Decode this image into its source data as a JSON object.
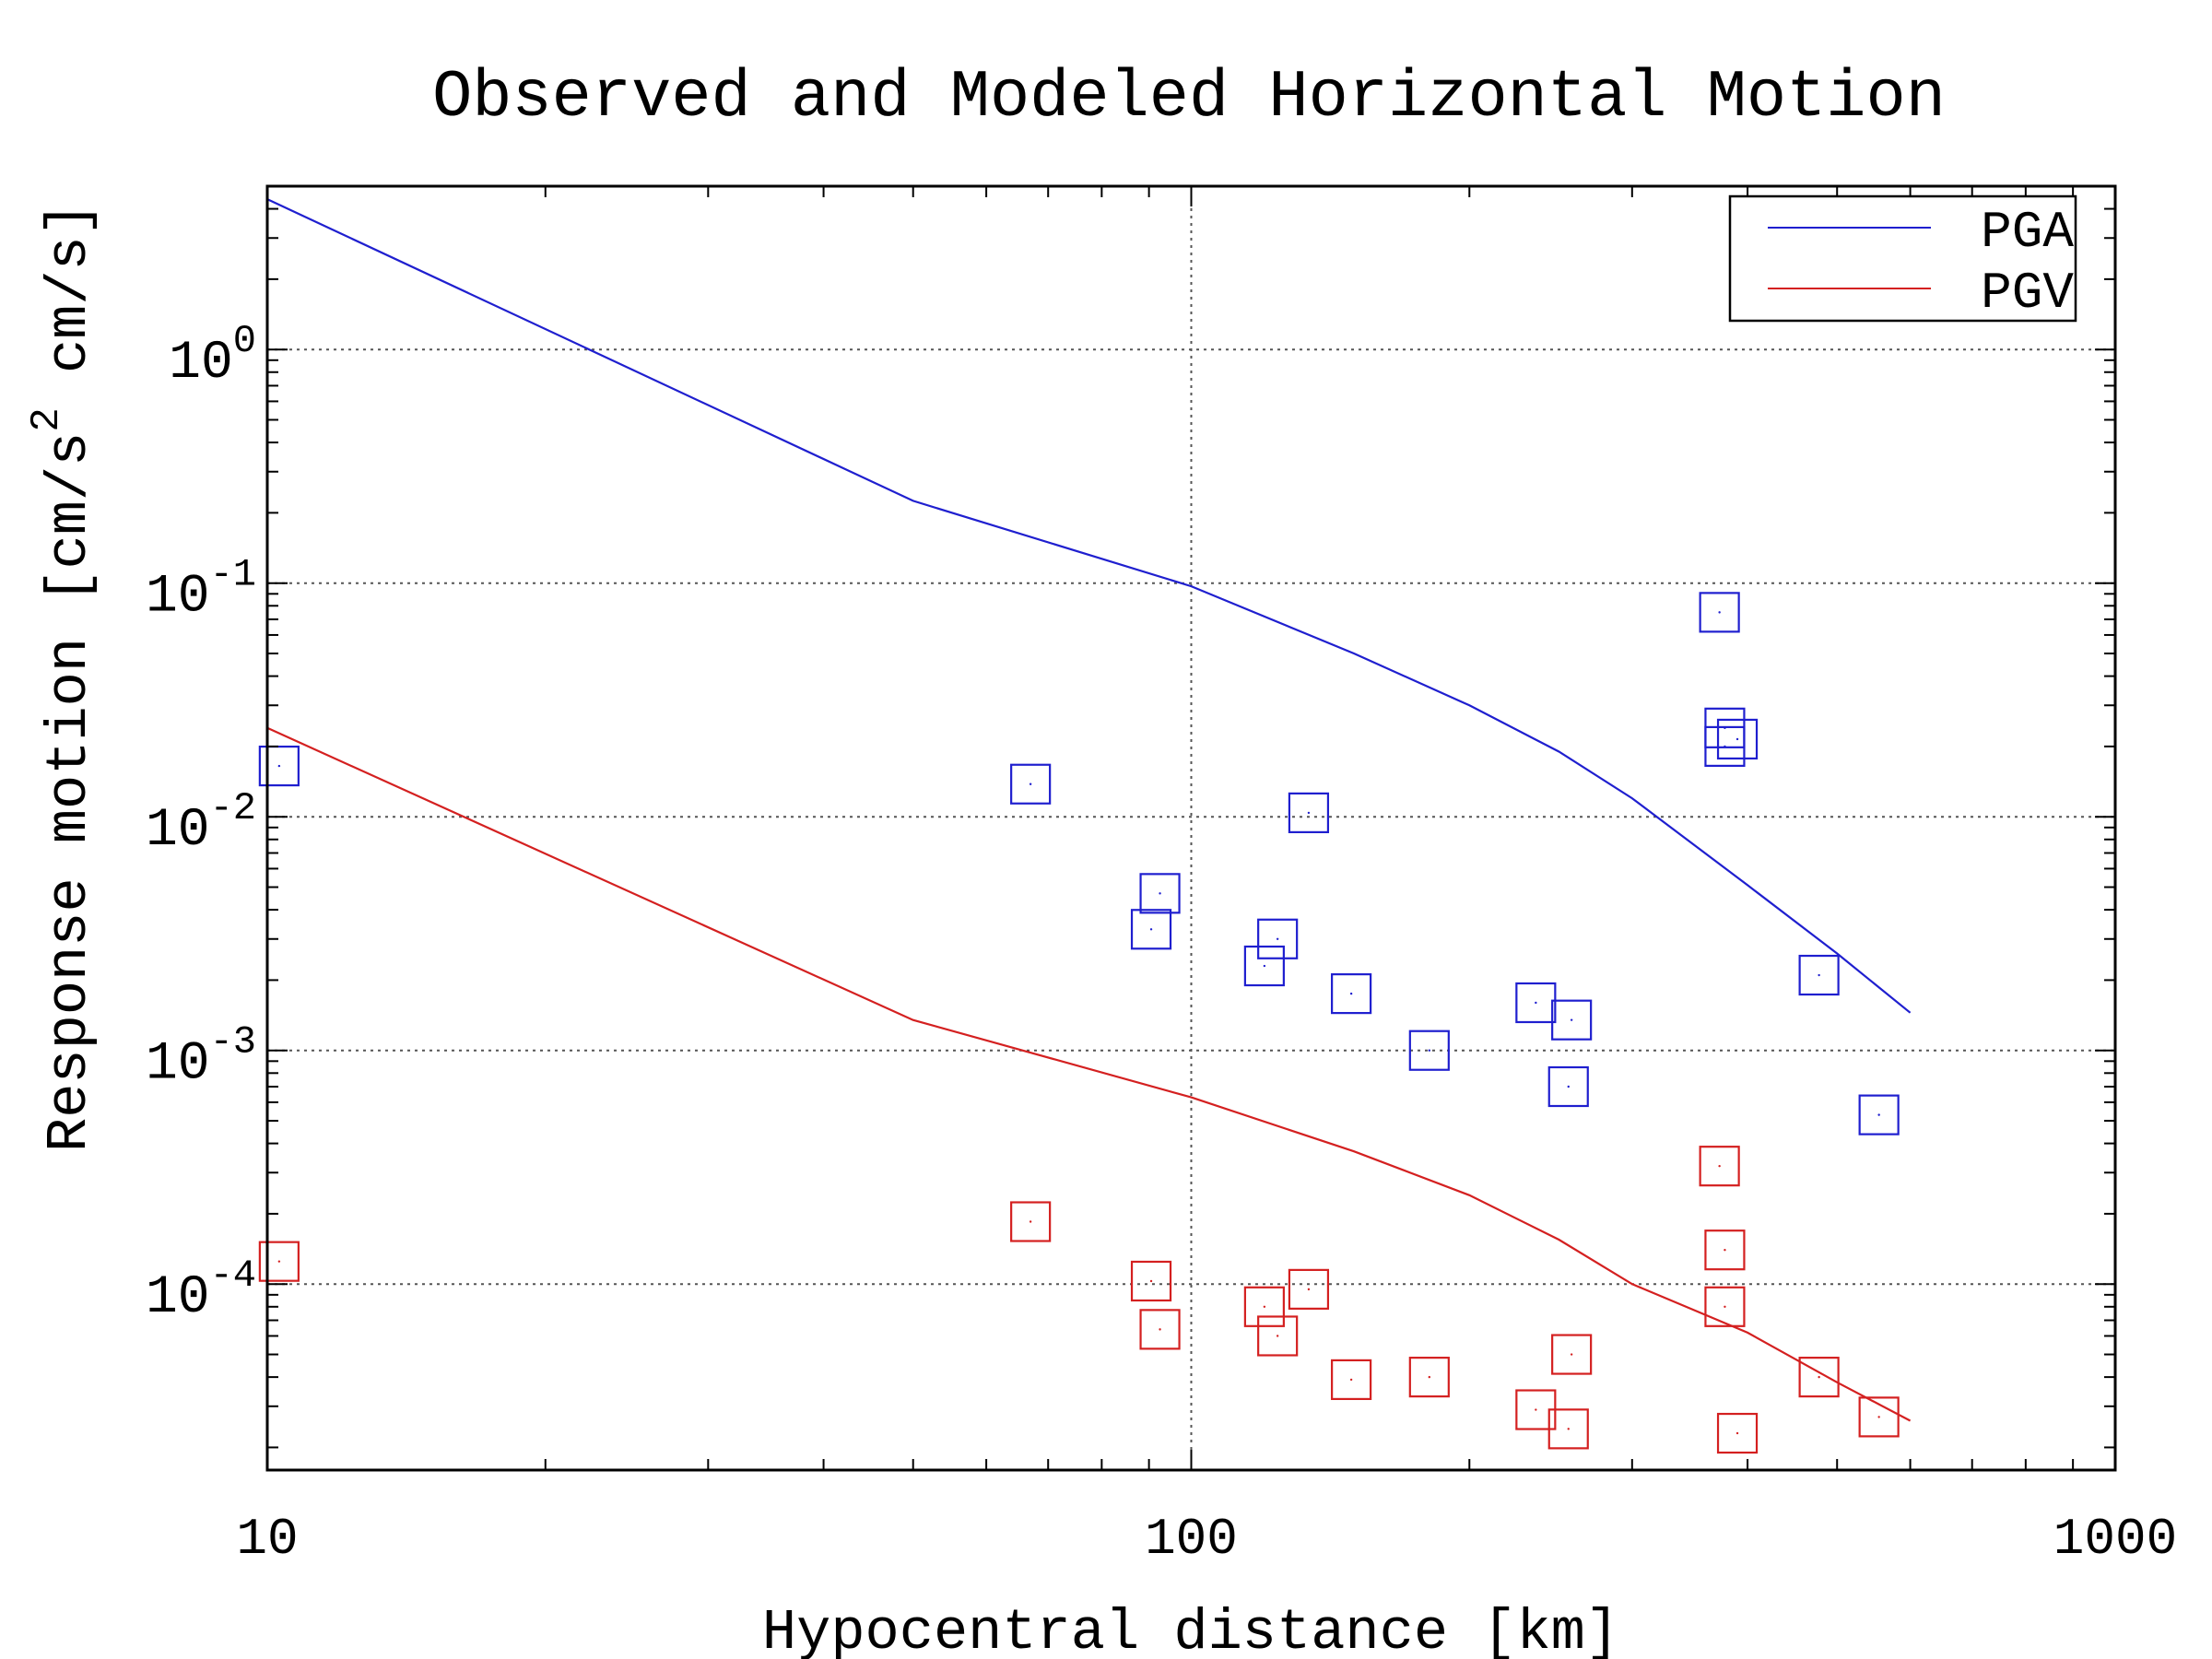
{
  "chart_data": {
    "type": "scatter",
    "title": "Observed and Modeled Horizontal Motion",
    "xlabel": "Hypocentral distance [km]",
    "ylabel_main": "Response motion [cm/s",
    "ylabel_sup": "2",
    "ylabel_end": " cm/s]",
    "x_scale": "log",
    "y_scale": "log",
    "xlim": [
      10,
      1000
    ],
    "ylim": [
      1.6e-05,
      5.0
    ],
    "grid": true,
    "legend_position": "top-right",
    "x_ticks": [
      {
        "value": 10,
        "label": "10"
      },
      {
        "value": 100,
        "label": "100"
      },
      {
        "value": 1000,
        "label": "1000"
      }
    ],
    "y_ticks": [
      {
        "value": 1,
        "base": "10",
        "exp": "0"
      },
      {
        "value": 0.1,
        "base": "10",
        "exp": "-1"
      },
      {
        "value": 0.01,
        "base": "10",
        "exp": "-2"
      },
      {
        "value": 0.001,
        "base": "10",
        "exp": "-3"
      },
      {
        "value": 0.0001,
        "base": "10",
        "exp": "-4"
      }
    ],
    "series": [
      {
        "name": "PGA",
        "color": "#1f1fcf",
        "model": {
          "x": [
            10,
            50,
            100,
            150,
            200,
            250,
            300,
            400,
            500,
            600
          ],
          "y": [
            4.4,
            0.225,
            0.097,
            0.05,
            0.03,
            0.019,
            0.012,
            0.0051,
            0.0026,
            0.00145
          ]
        },
        "observed": {
          "x": [
            10.3,
            67,
            90.5,
            92.5,
            120,
            124,
            134,
            149,
            181,
            236,
            256,
            258,
            373,
            378,
            390,
            478,
            555,
            378
          ],
          "y": [
            0.0165,
            0.0138,
            0.0033,
            0.0047,
            0.0023,
            0.003,
            0.0104,
            0.00175,
            0.001,
            0.0016,
            0.0007,
            0.00135,
            0.075,
            0.02,
            0.0215,
            0.0021,
            0.00053,
            0.024
          ]
        }
      },
      {
        "name": "PGV",
        "color": "#d42020",
        "model": {
          "x": [
            10,
            50,
            100,
            150,
            200,
            250,
            300,
            400,
            500,
            600
          ],
          "y": [
            0.024,
            0.00135,
            0.00063,
            0.00037,
            0.00024,
            0.000155,
            0.0001,
            6.2e-05,
            3.8e-05,
            2.6e-05
          ]
        },
        "observed": {
          "x": [
            10.3,
            67,
            90.5,
            92.5,
            120,
            124,
            134,
            149,
            181,
            236,
            256,
            258,
            373,
            378,
            390,
            478,
            555,
            378
          ],
          "y": [
            0.000125,
            0.000185,
            0.000103,
            6.4e-05,
            8e-05,
            6e-05,
            9.5e-05,
            3.9e-05,
            4e-05,
            2.9e-05,
            2.4e-05,
            5e-05,
            0.00032,
            8e-05,
            2.3e-05,
            4e-05,
            2.7e-05,
            0.00014
          ]
        }
      }
    ]
  }
}
